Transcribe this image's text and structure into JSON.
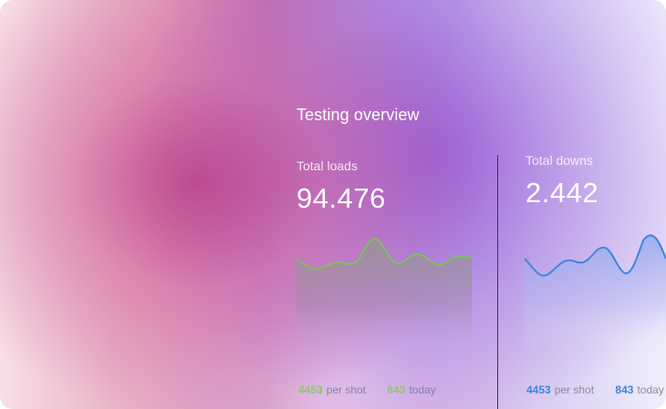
{
  "header": {
    "title": "Testing overview"
  },
  "cards": [
    {
      "label": "Total loads",
      "value": "94.476",
      "line_color": "#7fbf5e",
      "footer": [
        {
          "num": "4453",
          "unit": "per shot"
        },
        {
          "num": "843",
          "unit": "today"
        }
      ]
    },
    {
      "label": "Total downs",
      "value": "2.442",
      "line_color": "#3d86dc",
      "footer": [
        {
          "num": "4453",
          "unit": "per shot"
        },
        {
          "num": "843",
          "unit": "today"
        }
      ]
    }
  ]
}
